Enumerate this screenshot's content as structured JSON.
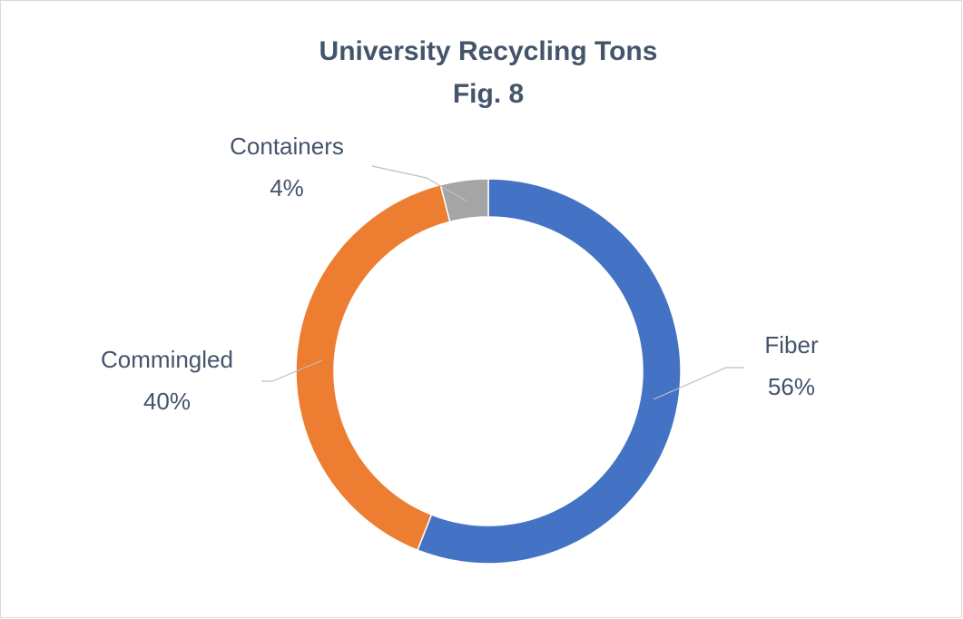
{
  "chart_data": {
    "type": "donut",
    "title": "University Recycling Tons",
    "subtitle": "Fig. 8",
    "categories": [
      "Fiber",
      "Commingled",
      "Containers"
    ],
    "values": [
      56,
      40,
      4
    ],
    "value_labels": [
      "56%",
      "40%",
      "4%"
    ],
    "colors": [
      "#4472c4",
      "#ed7d31",
      "#a5a5a5"
    ]
  }
}
